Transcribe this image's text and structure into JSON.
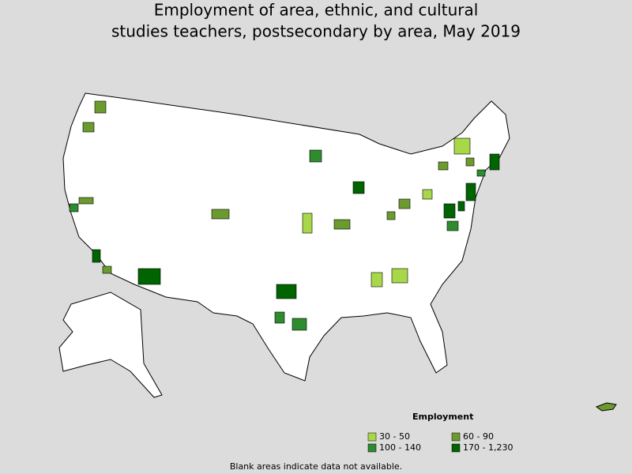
{
  "title": [
    "Employment of area, ethnic, and cultural",
    "studies teachers, postsecondary by area, May 2019"
  ],
  "legend": {
    "title": "Employment",
    "items": [
      {
        "label": "30 - 50",
        "color": "#a8d84a"
      },
      {
        "label": "60 - 90",
        "color": "#6b9a2e"
      },
      {
        "label": "100 - 140",
        "color": "#2e8b2e"
      },
      {
        "label": "170 - 1,230",
        "color": "#006400"
      }
    ]
  },
  "footnote": "Blank areas indicate data not available."
}
